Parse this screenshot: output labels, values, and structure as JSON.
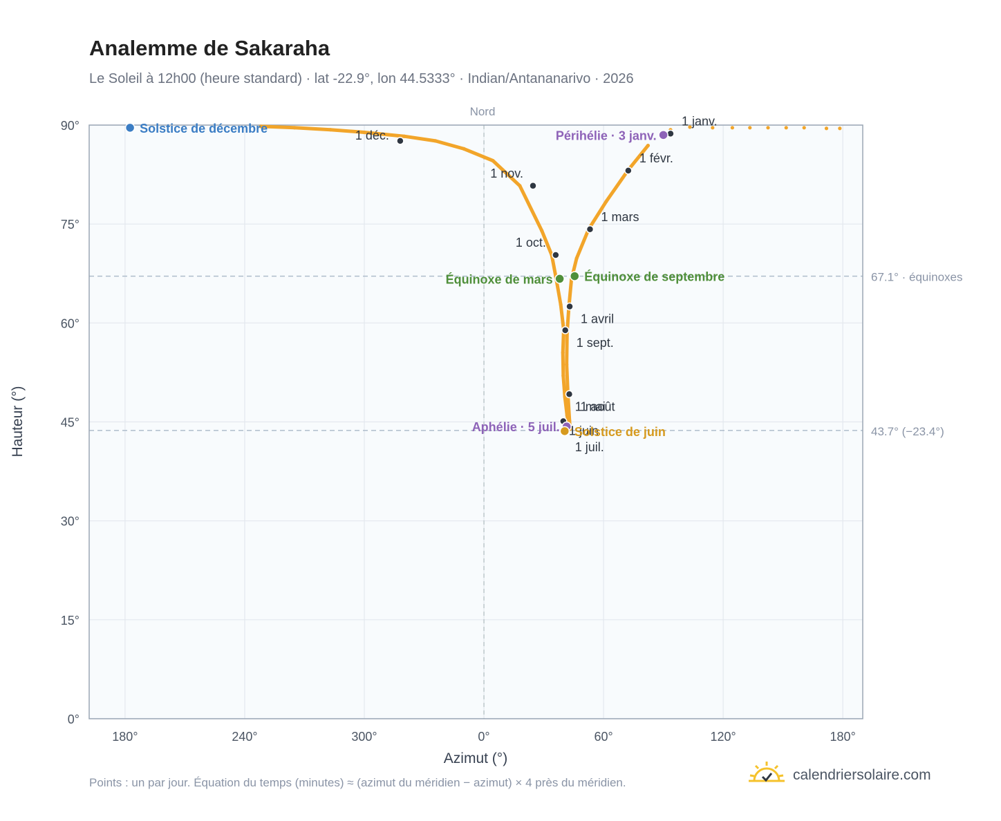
{
  "title": "Analemme de Sakaraha",
  "subtitle": "Le Soleil à 12h00 (heure standard) · lat -22.9°, lon 44.5333° · Indian/Antananarivo · 2026",
  "footnote": "Points : un par jour. Équation du temps (minutes) ≈ (azimut du méridien − azimut) × 4 près du méridien.",
  "brand": {
    "name": "calendriersolaire.com",
    "icon": "sun-check-icon"
  },
  "colors": {
    "curve": "#f2a52a",
    "marker": "#2f3742",
    "solstice_dec": "#3b7dc4",
    "solstice_jun": "#d69a1f",
    "equinox": "#4f8f3a",
    "perihelion": "#8e63b8",
    "plot_bg": "#f8fbfd",
    "grid": "#e3e8ee",
    "refline": "#aebccb"
  },
  "chart_data": {
    "type": "scatter",
    "xlabel": "Azimut (°)",
    "ylabel": "Hauteur (°)",
    "x_unwrapped_range": [
      162,
      550
    ],
    "xticks": [
      {
        "value": 180,
        "label": "180°"
      },
      {
        "value": 240,
        "label": "240°"
      },
      {
        "value": 300,
        "label": "300°"
      },
      {
        "value": 360,
        "label": "0°"
      },
      {
        "value": 420,
        "label": "60°"
      },
      {
        "value": 480,
        "label": "120°"
      },
      {
        "value": 540,
        "label": "180°"
      }
    ],
    "ylim": [
      0,
      90
    ],
    "yticks": [
      {
        "value": 0,
        "label": "0°"
      },
      {
        "value": 15,
        "label": "15°"
      },
      {
        "value": 30,
        "label": "30°"
      },
      {
        "value": 45,
        "label": "45°"
      },
      {
        "value": 60,
        "label": "60°"
      },
      {
        "value": 75,
        "label": "75°"
      },
      {
        "value": 90,
        "label": "90°"
      }
    ],
    "grid": true,
    "north_label": "Nord",
    "reference_lines": [
      {
        "altitude": 67.1,
        "label": "67.1° · équinoxes"
      },
      {
        "altitude": 43.7,
        "label": "43.7° (−23.4°)"
      }
    ],
    "series": [
      {
        "points": [
          [
            453.6,
            89.3
          ],
          [
            463.3,
            89.7
          ],
          [
            474.7,
            89.6
          ],
          [
            484.6,
            89.6
          ],
          [
            493.4,
            89.6
          ],
          [
            502.5,
            89.6
          ],
          [
            511.6,
            89.6
          ],
          [
            520.6,
            89.6
          ],
          [
            531.8,
            89.5
          ],
          [
            538.5,
            89.5
          ],
          [
            442.3,
            86.9
          ],
          [
            432.4,
            83.2
          ],
          [
            421.3,
            78.4
          ],
          [
            412.5,
            74.2
          ],
          [
            406.5,
            69.8
          ],
          [
            403.9,
            66.6
          ],
          [
            402.6,
            62.4
          ],
          [
            401.7,
            58.5
          ],
          [
            401.5,
            53.7
          ],
          [
            402.1,
            49.2
          ],
          [
            402.9,
            45.2
          ],
          [
            403.2,
            43.9
          ],
          [
            402.7,
            44.3
          ],
          [
            401.7,
            46.0
          ],
          [
            400.6,
            48.8
          ],
          [
            399.8,
            52.0
          ],
          [
            399.6,
            55.5
          ],
          [
            400.0,
            59.0
          ],
          [
            398.5,
            62.8
          ],
          [
            396.2,
            66.8
          ],
          [
            394.0,
            70.3
          ],
          [
            389.0,
            74.0
          ],
          [
            378.0,
            80.8
          ],
          [
            364.5,
            84.6
          ],
          [
            350.0,
            86.4
          ],
          [
            335.7,
            87.6
          ],
          [
            320.0,
            88.3
          ],
          [
            300.0,
            88.9
          ],
          [
            283.0,
            89.3
          ],
          [
            265.0,
            89.6
          ],
          [
            248.0,
            89.8
          ]
        ]
      }
    ],
    "month_markers": [
      {
        "label": "1 janv.",
        "x": 453.6,
        "y": 88.7
      },
      {
        "label": "1 févr.",
        "x": 432.4,
        "y": 83.1
      },
      {
        "label": "1 mars",
        "x": 413.2,
        "y": 74.2
      },
      {
        "label": "1 avril",
        "x": 403.0,
        "y": 62.5
      },
      {
        "label": "1 mai",
        "x": 402.9,
        "y": 49.2
      },
      {
        "label": "1 juin",
        "x": 399.8,
        "y": 45.1
      },
      {
        "label": "1 juil.",
        "x": 400.8,
        "y": 44.1
      },
      {
        "label": "1 août",
        "x": 402.8,
        "y": 49.2
      },
      {
        "label": "1 sept.",
        "x": 400.8,
        "y": 58.9
      },
      {
        "label": "1 oct.",
        "x": 396.0,
        "y": 70.3
      },
      {
        "label": "1 nov.",
        "x": 384.6,
        "y": 80.8
      },
      {
        "label": "1 déc.",
        "x": 318.0,
        "y": 87.6
      }
    ],
    "events": [
      {
        "label": "Solstice de décembre",
        "x": 182.5,
        "y": 89.6,
        "color_key": "solstice_dec",
        "side": "right"
      },
      {
        "label": "Périhélie · 3 janv.",
        "x": 450.0,
        "y": 88.5,
        "color_key": "perihelion",
        "side": "left"
      },
      {
        "label": "Équinoxe de mars",
        "x": 398.0,
        "y": 66.7,
        "color_key": "equinox",
        "side": "left"
      },
      {
        "label": "Équinoxe de septembre",
        "x": 405.5,
        "y": 67.1,
        "color_key": "equinox",
        "side": "right"
      },
      {
        "label": "Aphélie · 5 juil.",
        "x": 401.5,
        "y": 44.3,
        "color_key": "perihelion",
        "side": "left"
      },
      {
        "label": "Solstice de juin",
        "x": 400.5,
        "y": 43.6,
        "color_key": "solstice_jun",
        "side": "right"
      }
    ]
  }
}
